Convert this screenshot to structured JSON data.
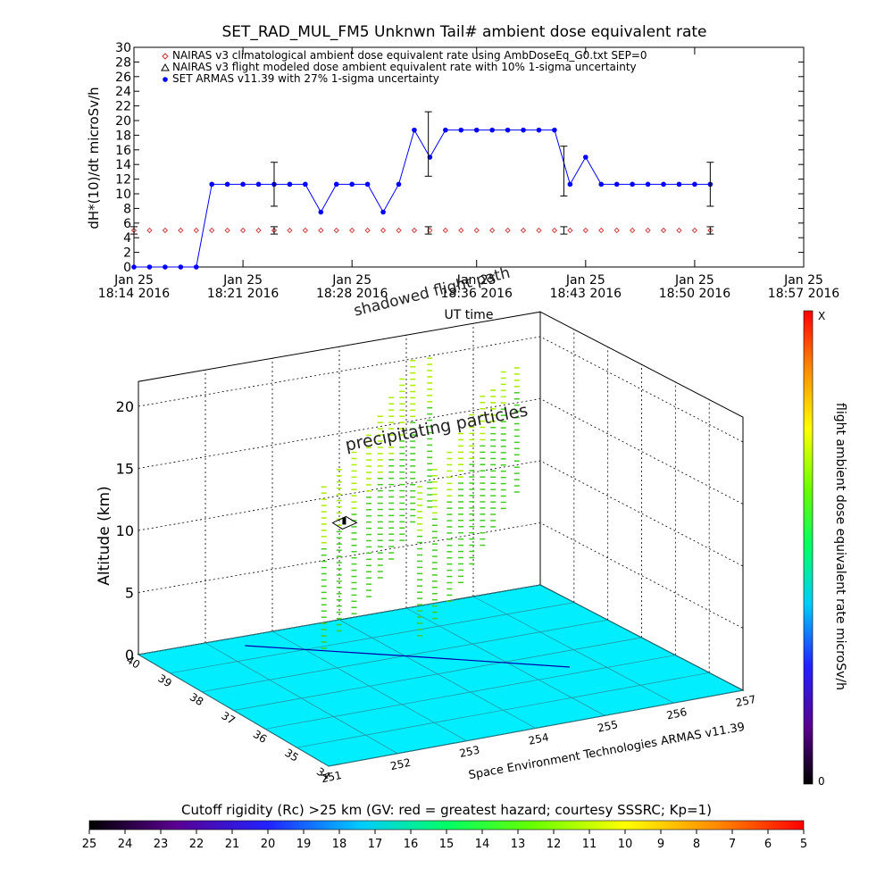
{
  "chart_data": [
    {
      "type": "line",
      "title": "SET_RAD_MUL_FM5 Unknwn Tail#  ambient dose equivalent rate",
      "ylabel": "dH*(10)/dt microSv/h",
      "xlabel": "UT time",
      "ylim": [
        0,
        30
      ],
      "yticks": [
        "0",
        "2",
        "4",
        "6",
        "8",
        "10",
        "12",
        "14",
        "16",
        "18",
        "20",
        "22",
        "24",
        "26",
        "28",
        "30"
      ],
      "xlim": [
        0,
        43
      ],
      "xticks": [
        {
          "x": 0,
          "l1": "Jan 25",
          "l2": "18:14 2016"
        },
        {
          "x": 7,
          "l1": "Jan 25",
          "l2": "18:21 2016"
        },
        {
          "x": 14,
          "l1": "Jan 25",
          "l2": "18:28 2016"
        },
        {
          "x": 22,
          "l1": "Jan 25",
          "l2": "18:36 2016"
        },
        {
          "x": 29,
          "l1": "Jan 25",
          "l2": "18:43 2016"
        },
        {
          "x": 36,
          "l1": "Jan 25",
          "l2": "18:50 2016"
        },
        {
          "x": 43,
          "l1": "Jan 25",
          "l2": "18:57 2016"
        }
      ],
      "legend": [
        "NAIRAS v3 climatological ambient dose equivalent rate using AmbDoseEq_G0.txt SEP=0",
        "NAIRAS v3 flight modeled dose ambient equivalent rate with 10% 1-sigma uncertainty",
        "SET ARMAS v11.39 with 27% 1-sigma uncertainty"
      ],
      "annotation": "shadowed flight path",
      "series": [
        {
          "color": "#0000ff",
          "x": [
            0,
            1,
            2,
            3,
            4,
            5,
            6,
            7,
            8,
            9,
            10,
            11,
            12,
            13,
            14,
            15,
            16,
            17,
            18,
            19,
            20,
            21,
            22,
            23,
            24,
            25,
            26,
            27,
            28,
            29,
            30,
            31,
            32,
            33,
            34,
            35,
            36,
            37
          ],
          "y": [
            0,
            0,
            0,
            0,
            0,
            11.3,
            11.3,
            11.3,
            11.3,
            11.3,
            11.3,
            11.3,
            7.5,
            11.3,
            11.3,
            11.3,
            7.5,
            11.3,
            18.7,
            15,
            18.7,
            18.7,
            18.7,
            18.7,
            18.7,
            18.7,
            18.7,
            18.7,
            11.3,
            15,
            11.3,
            11.3,
            11.3,
            11.3,
            11.3,
            11.3,
            11.3,
            11.3
          ],
          "errorbars": [
            {
              "x": 9,
              "y": 11.3,
              "err": 3.0
            },
            {
              "x": 18.9,
              "y": 16.8,
              "err": 4.4
            },
            {
              "x": 27.6,
              "y": 13.1,
              "err": 3.4
            },
            {
              "x": 37,
              "y": 11.3,
              "err": 3.0
            }
          ]
        },
        {
          "color": "#cc3333",
          "x": [
            0,
            1,
            2,
            3,
            4,
            5,
            6,
            7,
            8,
            9,
            10,
            11,
            12,
            13,
            14,
            15,
            16,
            17,
            18,
            19,
            20,
            21,
            22,
            23,
            24,
            25,
            26,
            27,
            28,
            29,
            30,
            31,
            32,
            33,
            34,
            35,
            36,
            37
          ],
          "y": [
            5,
            5,
            5,
            5,
            5,
            5,
            5,
            5,
            5,
            5,
            5,
            5,
            5,
            5,
            5,
            5,
            5,
            5,
            5,
            5,
            5,
            5,
            5,
            5,
            5,
            5,
            5,
            5,
            5,
            5,
            5,
            5,
            5,
            5,
            5,
            5,
            5,
            5
          ],
          "errorbars": [
            {
              "x": 0,
              "y": 5,
              "err": 0.5
            },
            {
              "x": 9,
              "y": 5,
              "err": 0.5
            },
            {
              "x": 18.9,
              "y": 5,
              "err": 0.5
            },
            {
              "x": 27.6,
              "y": 5,
              "err": 0.5
            },
            {
              "x": 37,
              "y": 5,
              "err": 0.5
            }
          ]
        }
      ]
    },
    {
      "type": "scatter3d",
      "zlabel": "Altitude (km)",
      "zticks": [
        "0",
        "5",
        "10",
        "15",
        "20"
      ],
      "zlim": [
        0,
        22
      ],
      "lat_ticks": [
        "34",
        "35",
        "36",
        "37",
        "38",
        "39",
        "40"
      ],
      "lon_ticks": [
        "251",
        "252",
        "253",
        "254",
        "255",
        "256",
        "257"
      ],
      "lat_range": [
        34,
        40
      ],
      "lon_range": [
        251,
        257
      ],
      "annotation": "precipitating particles",
      "credit": "Space Environment Technologies ARMAS v11.39",
      "floor_color": "#00eeff",
      "colorbar": {
        "label": "flight ambient dose equivalent rate microSv/h",
        "top": "X",
        "bottom": "0"
      },
      "flight_track": [
        {
          "lon": 252.4,
          "lat": 39.6,
          "z": 0
        },
        {
          "lon": 254.0,
          "lat": 38.0,
          "z": 0
        },
        {
          "lon": 255.6,
          "lat": 36.3,
          "z": 0
        }
      ],
      "aircraft": {
        "lon": 253.2,
        "lat": 38.2,
        "z": 11.2
      },
      "curtain": {
        "points": [
          {
            "lon": 251.3,
            "lat": 34.8,
            "zmin": 8,
            "zmax": 21
          },
          {
            "lon": 251.8,
            "lat": 35.4,
            "zmin": 8,
            "zmax": 21
          },
          {
            "lon": 252.3,
            "lat": 36.0,
            "zmin": 8,
            "zmax": 21
          },
          {
            "lon": 252.8,
            "lat": 36.6,
            "zmin": 8,
            "zmax": 21
          },
          {
            "lon": 253.3,
            "lat": 37.3,
            "zmin": 8,
            "zmax": 21
          },
          {
            "lon": 253.8,
            "lat": 38.0,
            "zmin": 8,
            "zmax": 21
          },
          {
            "lon": 254.3,
            "lat": 38.7,
            "zmin": 8,
            "zmax": 21
          },
          {
            "lon": 254.8,
            "lat": 39.4,
            "zmin": 8,
            "zmax": 21
          },
          {
            "lon": 255.3,
            "lat": 39.9,
            "zmin": 8,
            "zmax": 20
          },
          {
            "lon": 252.6,
            "lat": 34.6,
            "zmin": 8,
            "zmax": 20
          },
          {
            "lon": 253.1,
            "lat": 35.2,
            "zmin": 8,
            "zmax": 20
          },
          {
            "lon": 253.6,
            "lat": 35.8,
            "zmin": 8,
            "zmax": 20
          },
          {
            "lon": 254.1,
            "lat": 36.5,
            "zmin": 8,
            "zmax": 20
          },
          {
            "lon": 254.6,
            "lat": 37.2,
            "zmin": 8,
            "zmax": 20
          },
          {
            "lon": 255.1,
            "lat": 37.9,
            "zmin": 8,
            "zmax": 20
          },
          {
            "lon": 255.6,
            "lat": 38.6,
            "zmin": 8,
            "zmax": 19
          },
          {
            "lon": 256.1,
            "lat": 39.3,
            "zmin": 8,
            "zmax": 19
          },
          {
            "lon": 256.6,
            "lat": 39.9,
            "zmin": 8,
            "zmax": 18
          }
        ]
      }
    },
    {
      "type": "colorbar",
      "title": "Cutoff rigidity (Rc) >25 km (GV: red = greatest hazard; courtesy SSSRC; Kp=1)",
      "ticks": [
        "25",
        "24",
        "23",
        "22",
        "21",
        "20",
        "19",
        "18",
        "17",
        "16",
        "15",
        "14",
        "13",
        "12",
        "11",
        "10",
        "9",
        "8",
        "7",
        "6",
        "5"
      ]
    }
  ]
}
